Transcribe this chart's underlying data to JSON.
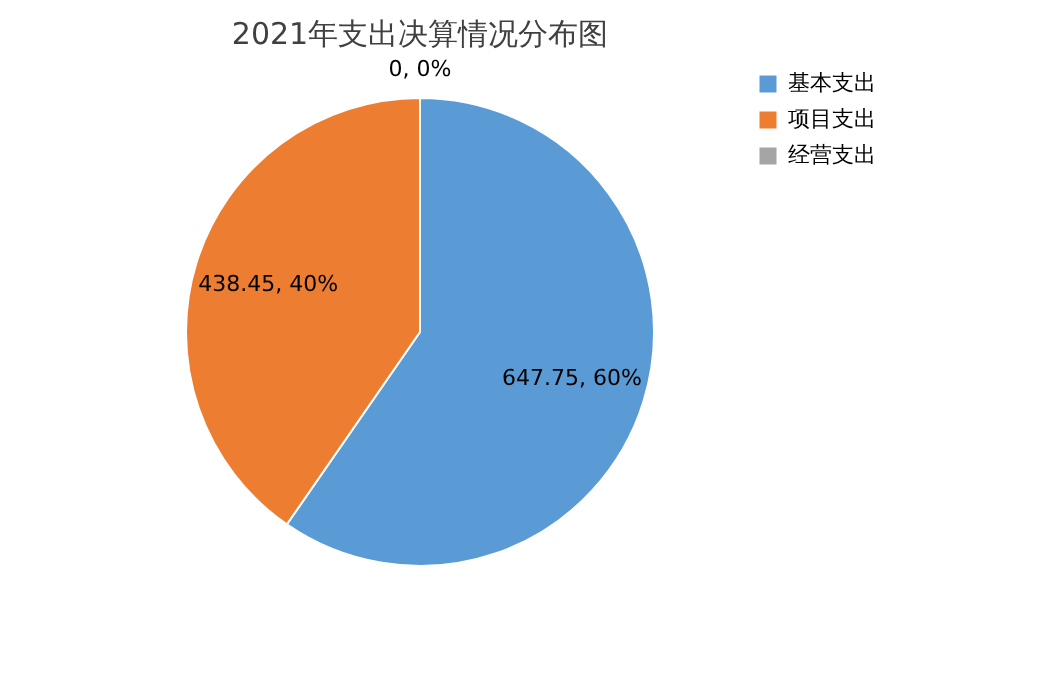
{
  "chart_data": {
    "type": "pie",
    "title": "2021年支出决算情况分布图",
    "categories": [
      "基本支出",
      "项目支出",
      "经营支出"
    ],
    "values": [
      647.75,
      438.45,
      0
    ],
    "colors": [
      "#5b9bd5",
      "#ed7d31",
      "#a5a5a5"
    ],
    "value_labels": [
      "647.75, 60%",
      "438.45, 40%",
      "0, 0%"
    ],
    "legend": "right"
  }
}
